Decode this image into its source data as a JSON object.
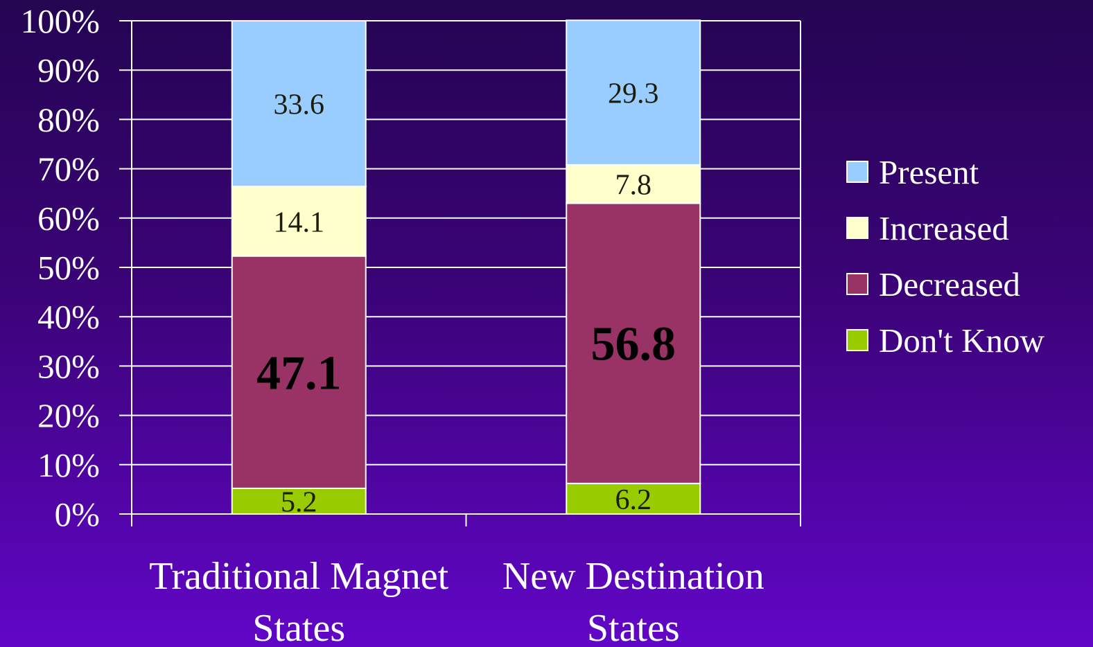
{
  "chart_data": {
    "type": "bar",
    "stacked": true,
    "percent_axis": true,
    "categories": [
      [
        "Traditional Magnet",
        "States"
      ],
      [
        "New Destination",
        "States"
      ]
    ],
    "series": [
      {
        "name": "Don't  Know",
        "values": [
          5.2,
          6.2
        ],
        "color": "#99cc00",
        "label_bold": false
      },
      {
        "name": "Decreased",
        "values": [
          47.1,
          56.8
        ],
        "color": "#993366",
        "label_bold": true
      },
      {
        "name": "Increased",
        "values": [
          14.1,
          7.8
        ],
        "color": "#ffffcc",
        "label_bold": false
      },
      {
        "name": "Present",
        "values": [
          33.6,
          29.3
        ],
        "color": "#99ccff",
        "label_bold": false
      }
    ],
    "y_ticks": [
      "0%",
      "10%",
      "20%",
      "30%",
      "40%",
      "50%",
      "60%",
      "70%",
      "80%",
      "90%",
      "100%"
    ],
    "ylim": [
      0,
      100
    ],
    "grid": true,
    "legend_position": "right",
    "legend_order": [
      "Present",
      "Increased",
      "Decreased",
      "Don't  Know"
    ]
  }
}
